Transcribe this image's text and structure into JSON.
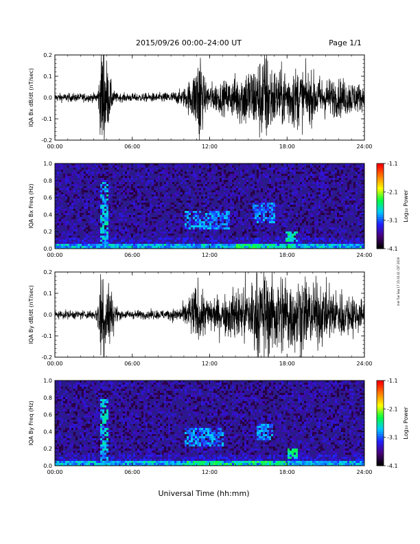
{
  "header": {
    "title": "2015/09/26  00:00–24:00 UT",
    "page": "Page 1/1"
  },
  "footer": {
    "xlabel": "Universal Time (hh:mm)",
    "side_note": "mel Tue Sep 17 15:33:41 CST 2019"
  },
  "time_ticks": [
    "00:00",
    "06:00",
    "12:00",
    "18:00",
    "24:00"
  ],
  "colorbar": {
    "label": "Log₁₀ Power",
    "ticks": [
      "-1.1",
      "-2.1",
      "-3.1",
      "-4.1"
    ],
    "range": [
      -4.1,
      -1.1
    ],
    "colors": [
      "#000000",
      "#4a007a",
      "#2020ff",
      "#00c8ff",
      "#00ff40",
      "#ffff00",
      "#ff8000",
      "#ff0000"
    ]
  },
  "chart_data": [
    {
      "type": "line",
      "ylabel": "IQA Bx dB/dt (nT/sec)",
      "xlim": [
        "00:00",
        "24:00"
      ],
      "ylim": [
        -0.2,
        0.2
      ],
      "yticks": [
        "0.2",
        "0.1",
        "0.0",
        "-0.1",
        "-0.2"
      ],
      "baseline_noise": 0.02,
      "bursts": [
        {
          "t": 3.7,
          "width": 0.25,
          "amp": 0.2
        },
        {
          "t": 4.0,
          "width": 0.4,
          "amp": 0.12
        },
        {
          "t": 11.2,
          "width": 0.2,
          "amp": 0.2
        },
        {
          "t": 10.9,
          "width": 0.6,
          "amp": 0.07
        },
        {
          "t": 12.5,
          "width": 2.5,
          "amp": 0.05
        },
        {
          "t": 15.0,
          "width": 1.2,
          "amp": 0.1
        },
        {
          "t": 16.3,
          "width": 0.6,
          "amp": 0.12
        },
        {
          "t": 18.0,
          "width": 2.0,
          "amp": 0.1
        },
        {
          "t": 20.5,
          "width": 2.5,
          "amp": 0.06
        },
        {
          "t": 23.0,
          "width": 1.5,
          "amp": 0.04
        }
      ]
    },
    {
      "type": "heatmap",
      "ylabel": "IQA Bx Freq (Hz)",
      "xlim": [
        "00:00",
        "24:00"
      ],
      "ylim": [
        0.0,
        1.0
      ],
      "yticks": [
        "1.0",
        "0.8",
        "0.6",
        "0.4",
        "0.2",
        "0.0"
      ],
      "features": [
        {
          "t0": 3.5,
          "t1": 4.1,
          "f0": 0.0,
          "f1": 0.8,
          "level": -2.8
        },
        {
          "t0": 10.0,
          "t1": 13.5,
          "f0": 0.25,
          "f1": 0.45,
          "level": -3.0
        },
        {
          "t0": 15.3,
          "t1": 17.0,
          "f0": 0.3,
          "f1": 0.55,
          "level": -3.0
        },
        {
          "t0": 17.8,
          "t1": 18.8,
          "f0": 0.1,
          "f1": 0.22,
          "level": -2.6
        },
        {
          "t0": 14.0,
          "t1": 18.5,
          "f0": 0.0,
          "f1": 0.06,
          "level": -2.5
        }
      ]
    },
    {
      "type": "line",
      "ylabel": "IQA By dB/dt (nT/sec)",
      "xlim": [
        "00:00",
        "24:00"
      ],
      "ylim": [
        -0.2,
        0.2
      ],
      "yticks": [
        "0.2",
        "0.1",
        "0.0",
        "-0.1",
        "-0.2"
      ],
      "baseline_noise": 0.02,
      "bursts": [
        {
          "t": 3.7,
          "width": 0.3,
          "amp": 0.2
        },
        {
          "t": 4.1,
          "width": 0.5,
          "amp": 0.13
        },
        {
          "t": 11.0,
          "width": 0.7,
          "amp": 0.08
        },
        {
          "t": 12.5,
          "width": 2.5,
          "amp": 0.05
        },
        {
          "t": 15.5,
          "width": 2.0,
          "amp": 0.1
        },
        {
          "t": 17.8,
          "width": 2.5,
          "amp": 0.12
        },
        {
          "t": 20.5,
          "width": 2.5,
          "amp": 0.08
        },
        {
          "t": 23.0,
          "width": 1.5,
          "amp": 0.05
        }
      ]
    },
    {
      "type": "heatmap",
      "ylabel": "IQA By Freq (Hz)",
      "xlim": [
        "00:00",
        "24:00"
      ],
      "ylim": [
        0.0,
        1.0
      ],
      "yticks": [
        "1.0",
        "0.8",
        "0.6",
        "0.4",
        "0.2",
        "0.0"
      ],
      "features": [
        {
          "t0": 3.5,
          "t1": 4.1,
          "f0": 0.0,
          "f1": 0.8,
          "level": -2.8
        },
        {
          "t0": 10.0,
          "t1": 13.0,
          "f0": 0.25,
          "f1": 0.45,
          "level": -3.0
        },
        {
          "t0": 15.5,
          "t1": 16.8,
          "f0": 0.3,
          "f1": 0.5,
          "level": -3.0
        },
        {
          "t0": 18.0,
          "t1": 18.8,
          "f0": 0.1,
          "f1": 0.22,
          "level": -2.6
        },
        {
          "t0": 10.0,
          "t1": 18.0,
          "f0": 0.0,
          "f1": 0.06,
          "level": -2.5
        }
      ]
    }
  ]
}
